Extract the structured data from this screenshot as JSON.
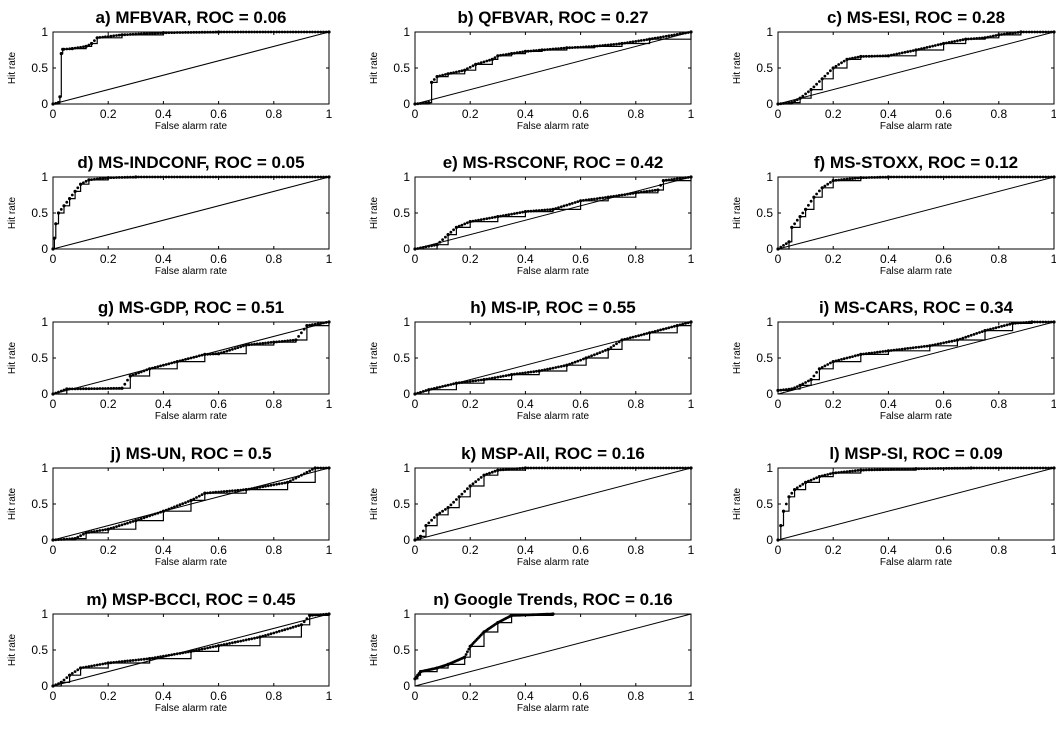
{
  "figure": {
    "xlabel": "False alarm rate",
    "ylabel": "Hit rate",
    "x_ticks": [
      "0",
      "0.2",
      "0.4",
      "0.6",
      "0.8",
      "1"
    ],
    "y_ticks": [
      "0",
      "0.5",
      "1"
    ]
  },
  "chart_data": [
    {
      "type": "scatter",
      "title": "a) MFBVAR, ROC = 0.06",
      "xlabel": "False alarm rate",
      "ylabel": "Hit rate",
      "xlim": [
        0,
        1
      ],
      "ylim": [
        0,
        1
      ],
      "grid": false,
      "diagonal": [
        [
          0,
          0
        ],
        [
          1,
          1
        ]
      ],
      "curve": [
        [
          0,
          0
        ],
        [
          0.02,
          0.02
        ],
        [
          0.025,
          0.1
        ],
        [
          0.03,
          0.7
        ],
        [
          0.035,
          0.76
        ],
        [
          0.07,
          0.77
        ],
        [
          0.12,
          0.8
        ],
        [
          0.14,
          0.84
        ],
        [
          0.16,
          0.92
        ],
        [
          0.25,
          0.96
        ],
        [
          0.4,
          0.99
        ],
        [
          0.6,
          1.0
        ],
        [
          1.0,
          1.0
        ]
      ]
    },
    {
      "type": "scatter",
      "title": "b) QFBVAR, ROC = 0.27",
      "xlabel": "False alarm rate",
      "ylabel": "Hit rate",
      "xlim": [
        0,
        1
      ],
      "ylim": [
        0,
        1
      ],
      "grid": false,
      "diagonal": [
        [
          0,
          0
        ],
        [
          1,
          1
        ]
      ],
      "curve": [
        [
          0,
          0
        ],
        [
          0.05,
          0.02
        ],
        [
          0.06,
          0.3
        ],
        [
          0.08,
          0.38
        ],
        [
          0.12,
          0.42
        ],
        [
          0.18,
          0.47
        ],
        [
          0.22,
          0.55
        ],
        [
          0.28,
          0.62
        ],
        [
          0.3,
          0.67
        ],
        [
          0.35,
          0.7
        ],
        [
          0.4,
          0.73
        ],
        [
          0.46,
          0.75
        ],
        [
          0.55,
          0.78
        ],
        [
          0.65,
          0.8
        ],
        [
          0.75,
          0.84
        ],
        [
          0.85,
          0.9
        ],
        [
          1.0,
          1.0
        ]
      ]
    },
    {
      "type": "scatter",
      "title": "c) MS-ESI, ROC = 0.28",
      "xlabel": "False alarm rate",
      "ylabel": "Hit rate",
      "xlim": [
        0,
        1
      ],
      "ylim": [
        0,
        1
      ],
      "grid": false,
      "diagonal": [
        [
          0,
          0
        ],
        [
          1,
          1
        ]
      ],
      "curve": [
        [
          0,
          0
        ],
        [
          0.05,
          0.02
        ],
        [
          0.08,
          0.08
        ],
        [
          0.12,
          0.2
        ],
        [
          0.16,
          0.35
        ],
        [
          0.2,
          0.5
        ],
        [
          0.25,
          0.62
        ],
        [
          0.3,
          0.66
        ],
        [
          0.4,
          0.67
        ],
        [
          0.5,
          0.75
        ],
        [
          0.6,
          0.84
        ],
        [
          0.68,
          0.9
        ],
        [
          0.75,
          0.92
        ],
        [
          0.8,
          0.96
        ],
        [
          0.88,
          1.0
        ],
        [
          1.0,
          1.0
        ]
      ]
    },
    {
      "type": "scatter",
      "title": "d) MS-INDCONF, ROC = 0.05",
      "xlabel": "False alarm rate",
      "ylabel": "Hit rate",
      "xlim": [
        0,
        1
      ],
      "ylim": [
        0,
        1
      ],
      "grid": false,
      "diagonal": [
        [
          0,
          0
        ],
        [
          1,
          1
        ]
      ],
      "curve": [
        [
          0,
          0
        ],
        [
          0.005,
          0.15
        ],
        [
          0.01,
          0.35
        ],
        [
          0.02,
          0.5
        ],
        [
          0.04,
          0.6
        ],
        [
          0.06,
          0.7
        ],
        [
          0.08,
          0.8
        ],
        [
          0.1,
          0.9
        ],
        [
          0.13,
          0.96
        ],
        [
          0.2,
          0.99
        ],
        [
          0.3,
          1.0
        ],
        [
          1.0,
          1.0
        ]
      ]
    },
    {
      "type": "scatter",
      "title": "e) MS-RSCONF, ROC = 0.42",
      "xlabel": "False alarm rate",
      "ylabel": "Hit rate",
      "xlim": [
        0,
        1
      ],
      "ylim": [
        0,
        1
      ],
      "grid": false,
      "diagonal": [
        [
          0,
          0
        ],
        [
          1,
          1
        ]
      ],
      "curve": [
        [
          0,
          0
        ],
        [
          0.08,
          0.06
        ],
        [
          0.12,
          0.2
        ],
        [
          0.15,
          0.3
        ],
        [
          0.2,
          0.38
        ],
        [
          0.3,
          0.45
        ],
        [
          0.4,
          0.52
        ],
        [
          0.5,
          0.55
        ],
        [
          0.6,
          0.67
        ],
        [
          0.7,
          0.72
        ],
        [
          0.8,
          0.78
        ],
        [
          0.88,
          0.82
        ],
        [
          0.9,
          0.95
        ],
        [
          1.0,
          1.0
        ]
      ]
    },
    {
      "type": "scatter",
      "title": "f) MS-STOXX, ROC = 0.12",
      "xlabel": "False alarm rate",
      "ylabel": "Hit rate",
      "xlim": [
        0,
        1
      ],
      "ylim": [
        0,
        1
      ],
      "grid": false,
      "diagonal": [
        [
          0,
          0
        ],
        [
          1,
          1
        ]
      ],
      "curve": [
        [
          0,
          0
        ],
        [
          0.04,
          0.1
        ],
        [
          0.05,
          0.3
        ],
        [
          0.08,
          0.45
        ],
        [
          0.1,
          0.55
        ],
        [
          0.13,
          0.72
        ],
        [
          0.16,
          0.85
        ],
        [
          0.2,
          0.95
        ],
        [
          0.3,
          0.99
        ],
        [
          0.4,
          1.0
        ],
        [
          1.0,
          1.0
        ]
      ]
    },
    {
      "type": "scatter",
      "title": "g) MS-GDP, ROC = 0.51",
      "xlabel": "False alarm rate",
      "ylabel": "Hit rate",
      "xlim": [
        0,
        1
      ],
      "ylim": [
        0,
        1
      ],
      "grid": false,
      "diagonal": [
        [
          0,
          0
        ],
        [
          1,
          1
        ]
      ],
      "curve": [
        [
          0,
          0
        ],
        [
          0.05,
          0.07
        ],
        [
          0.25,
          0.08
        ],
        [
          0.28,
          0.25
        ],
        [
          0.35,
          0.35
        ],
        [
          0.45,
          0.45
        ],
        [
          0.55,
          0.55
        ],
        [
          0.6,
          0.56
        ],
        [
          0.7,
          0.68
        ],
        [
          0.8,
          0.72
        ],
        [
          0.88,
          0.75
        ],
        [
          0.92,
          0.95
        ],
        [
          1.0,
          1.0
        ]
      ]
    },
    {
      "type": "scatter",
      "title": "h) MS-IP, ROC = 0.55",
      "xlabel": "False alarm rate",
      "ylabel": "Hit rate",
      "xlim": [
        0,
        1
      ],
      "ylim": [
        0,
        1
      ],
      "grid": false,
      "diagonal": [
        [
          0,
          0
        ],
        [
          1,
          1
        ]
      ],
      "curve": [
        [
          0,
          0
        ],
        [
          0.05,
          0.06
        ],
        [
          0.15,
          0.15
        ],
        [
          0.25,
          0.2
        ],
        [
          0.35,
          0.27
        ],
        [
          0.45,
          0.32
        ],
        [
          0.55,
          0.4
        ],
        [
          0.62,
          0.5
        ],
        [
          0.7,
          0.62
        ],
        [
          0.75,
          0.75
        ],
        [
          0.85,
          0.85
        ],
        [
          0.95,
          0.95
        ],
        [
          1.0,
          1.0
        ]
      ]
    },
    {
      "type": "scatter",
      "title": "i) MS-CARS, ROC = 0.34",
      "xlabel": "False alarm rate",
      "ylabel": "Hit rate",
      "xlim": [
        0,
        1
      ],
      "ylim": [
        0,
        1
      ],
      "grid": false,
      "diagonal": [
        [
          0,
          0
        ],
        [
          1,
          1
        ]
      ],
      "curve": [
        [
          0,
          0.05
        ],
        [
          0.05,
          0.07
        ],
        [
          0.08,
          0.12
        ],
        [
          0.12,
          0.2
        ],
        [
          0.15,
          0.35
        ],
        [
          0.2,
          0.45
        ],
        [
          0.3,
          0.55
        ],
        [
          0.4,
          0.6
        ],
        [
          0.55,
          0.67
        ],
        [
          0.65,
          0.75
        ],
        [
          0.75,
          0.88
        ],
        [
          0.85,
          0.98
        ],
        [
          0.92,
          1.0
        ],
        [
          1.0,
          1.0
        ]
      ]
    },
    {
      "type": "scatter",
      "title": "j) MS-UN, ROC = 0.5",
      "xlabel": "False alarm rate",
      "ylabel": "Hit rate",
      "xlim": [
        0,
        1
      ],
      "ylim": [
        0,
        1
      ],
      "grid": false,
      "diagonal": [
        [
          0,
          0
        ],
        [
          1,
          1
        ]
      ],
      "curve": [
        [
          0,
          0
        ],
        [
          0.08,
          0.02
        ],
        [
          0.12,
          0.1
        ],
        [
          0.2,
          0.15
        ],
        [
          0.3,
          0.27
        ],
        [
          0.4,
          0.4
        ],
        [
          0.5,
          0.55
        ],
        [
          0.55,
          0.65
        ],
        [
          0.7,
          0.7
        ],
        [
          0.85,
          0.8
        ],
        [
          0.95,
          1.0
        ],
        [
          1.0,
          1.0
        ]
      ]
    },
    {
      "type": "scatter",
      "title": "k) MSP-All, ROC = 0.16",
      "xlabel": "False alarm rate",
      "ylabel": "Hit rate",
      "xlim": [
        0,
        1
      ],
      "ylim": [
        0,
        1
      ],
      "grid": false,
      "diagonal": [
        [
          0,
          0
        ],
        [
          1,
          1
        ]
      ],
      "curve": [
        [
          0,
          0
        ],
        [
          0.02,
          0.05
        ],
        [
          0.04,
          0.2
        ],
        [
          0.08,
          0.35
        ],
        [
          0.12,
          0.45
        ],
        [
          0.16,
          0.6
        ],
        [
          0.2,
          0.75
        ],
        [
          0.25,
          0.9
        ],
        [
          0.3,
          0.97
        ],
        [
          0.4,
          1.0
        ],
        [
          1.0,
          1.0
        ]
      ]
    },
    {
      "type": "scatter",
      "title": "l) MSP-SI, ROC = 0.09",
      "xlabel": "False alarm rate",
      "ylabel": "Hit rate",
      "xlim": [
        0,
        1
      ],
      "ylim": [
        0,
        1
      ],
      "grid": false,
      "diagonal": [
        [
          0,
          0
        ],
        [
          1,
          1
        ]
      ],
      "curve": [
        [
          0,
          0
        ],
        [
          0.01,
          0.2
        ],
        [
          0.02,
          0.4
        ],
        [
          0.04,
          0.6
        ],
        [
          0.06,
          0.7
        ],
        [
          0.1,
          0.8
        ],
        [
          0.15,
          0.88
        ],
        [
          0.2,
          0.93
        ],
        [
          0.3,
          0.97
        ],
        [
          0.5,
          0.99
        ],
        [
          0.7,
          1.0
        ],
        [
          1.0,
          1.0
        ]
      ]
    },
    {
      "type": "scatter",
      "title": "m) MSP-BCCI, ROC = 0.45",
      "xlabel": "False alarm rate",
      "ylabel": "Hit rate",
      "xlim": [
        0,
        1
      ],
      "ylim": [
        0,
        1
      ],
      "grid": false,
      "diagonal": [
        [
          0,
          0
        ],
        [
          1,
          1
        ]
      ],
      "curve": [
        [
          0,
          0
        ],
        [
          0.03,
          0.05
        ],
        [
          0.06,
          0.15
        ],
        [
          0.1,
          0.25
        ],
        [
          0.2,
          0.32
        ],
        [
          0.35,
          0.38
        ],
        [
          0.5,
          0.48
        ],
        [
          0.6,
          0.56
        ],
        [
          0.75,
          0.68
        ],
        [
          0.9,
          0.85
        ],
        [
          0.93,
          0.98
        ],
        [
          1.0,
          1.0
        ]
      ]
    },
    {
      "type": "scatter",
      "title": "n) Google Trends, ROC = 0.16",
      "xlabel": "False alarm rate",
      "ylabel": "Hit rate",
      "xlim": [
        0,
        1
      ],
      "ylim": [
        0,
        1
      ],
      "grid": false,
      "diagonal": [
        [
          0,
          0
        ],
        [
          1,
          1
        ]
      ],
      "curve": [
        [
          0,
          0.1
        ],
        [
          0.01,
          0.15
        ],
        [
          0.02,
          0.2
        ],
        [
          0.08,
          0.25
        ],
        [
          0.12,
          0.3
        ],
        [
          0.18,
          0.4
        ],
        [
          0.2,
          0.55
        ],
        [
          0.25,
          0.75
        ],
        [
          0.3,
          0.88
        ],
        [
          0.35,
          0.98
        ],
        [
          0.5,
          1.0
        ]
      ]
    }
  ]
}
